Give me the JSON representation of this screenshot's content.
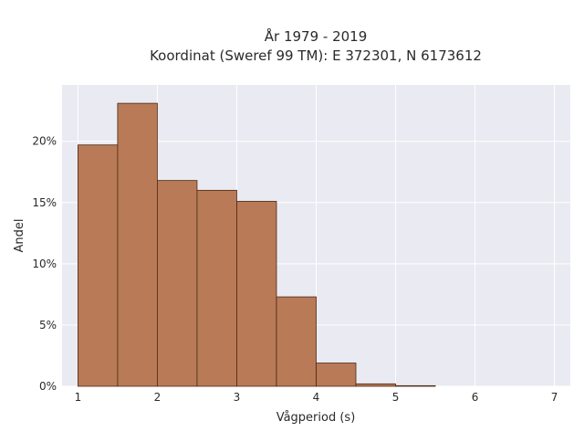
{
  "chart_data": {
    "type": "bar",
    "title": "År 1979 - 2019",
    "subtitle": "Koordinat (Sweref 99 TM): E 372301, N 6173612",
    "xlabel": "Vågperiod (s)",
    "ylabel": "Andel",
    "bin_width": 0.5,
    "bins_start": [
      1.0,
      1.5,
      2.0,
      2.5,
      3.0,
      3.5,
      4.0,
      4.5,
      5.0
    ],
    "values": [
      19.7,
      23.1,
      16.8,
      16.0,
      15.1,
      7.3,
      1.9,
      0.2,
      0.05
    ],
    "xlim": [
      0.8,
      7.2
    ],
    "ylim": [
      0,
      24.6
    ],
    "xticks": [
      1,
      2,
      3,
      4,
      5,
      6,
      7
    ],
    "xtick_labels": [
      "1",
      "2",
      "3",
      "4",
      "5",
      "6",
      "7"
    ],
    "yticks": [
      0,
      5,
      10,
      15,
      20
    ],
    "ytick_labels": [
      "0%",
      "5%",
      "10%",
      "15%",
      "20%"
    ],
    "grid": true,
    "colors": {
      "bar_fill": "#b97a57",
      "bar_edge": "#4a2a14",
      "plot_background": "#eaeaf2",
      "grid": "#ffffff"
    }
  }
}
